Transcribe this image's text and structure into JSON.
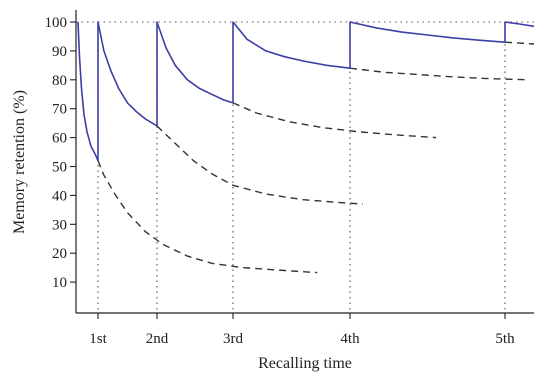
{
  "chart_data": {
    "type": "line",
    "title": "",
    "xlabel": "Recalling time",
    "ylabel": "Memory retention (%)",
    "ylim": [
      0,
      100
    ],
    "ytick_values": [
      10,
      20,
      30,
      40,
      50,
      60,
      70,
      80,
      90,
      100
    ],
    "ytick_labels": [
      "10",
      "20",
      "30",
      "40",
      "50",
      "60",
      "70",
      "80",
      "90",
      "100"
    ],
    "recall_points": [
      {
        "label": "1st",
        "x": 1,
        "level_before_recall": 52
      },
      {
        "label": "2nd",
        "x": 2,
        "level_before_recall": 64
      },
      {
        "label": "3rd",
        "x": 3,
        "level_before_recall": 72
      },
      {
        "label": "4th",
        "x": 4,
        "level_before_recall": 84
      },
      {
        "label": "5th",
        "x": 5,
        "level_before_recall": 93
      }
    ],
    "x_start": 0.1,
    "x_end": 5.15,
    "reference_line": {
      "y": 100,
      "style": "dotted"
    },
    "vertical_markers": {
      "style": "dotted"
    },
    "series": [
      {
        "role": "retention after recall (solid)",
        "color": "#3b3fa6",
        "style": "solid",
        "points": [
          [
            0.1,
            100
          ],
          [
            0.13,
            88
          ],
          [
            0.17,
            77
          ],
          [
            0.22,
            68
          ],
          [
            0.28,
            62
          ],
          [
            0.36,
            57
          ],
          [
            0.45,
            54
          ],
          [
            0.5,
            52
          ],
          [
            0.5,
            100
          ],
          [
            0.6,
            90
          ],
          [
            0.72,
            83
          ],
          [
            0.85,
            77
          ],
          [
            1.0,
            72
          ],
          [
            1.15,
            69
          ],
          [
            1.3,
            66.5
          ],
          [
            1.5,
            64
          ],
          [
            1.5,
            100
          ],
          [
            1.65,
            91
          ],
          [
            1.8,
            85
          ],
          [
            2.0,
            80
          ],
          [
            2.2,
            77
          ],
          [
            2.4,
            75
          ],
          [
            2.6,
            73
          ],
          [
            2.75,
            72
          ],
          [
            2.75,
            100
          ],
          [
            2.9,
            94
          ],
          [
            3.1,
            90
          ],
          [
            3.3,
            88
          ],
          [
            3.5,
            86.5
          ],
          [
            3.75,
            85
          ],
          [
            4.0,
            84
          ],
          [
            4.0,
            100
          ],
          [
            4.3,
            98
          ],
          [
            4.6,
            96.5
          ],
          [
            4.9,
            95.5
          ],
          [
            5.2,
            94.5
          ],
          [
            5.5,
            93.7
          ],
          [
            5.8,
            93
          ],
          [
            5.8,
            100
          ],
          [
            5.95,
            99.3
          ],
          [
            6.1,
            98.5
          ]
        ]
      },
      {
        "role": "forgetting curve without 1st recall (dashed)",
        "color": "#333333",
        "style": "dashed",
        "points": [
          [
            0.5,
            52
          ],
          [
            0.6,
            47
          ],
          [
            0.8,
            40
          ],
          [
            1.0,
            34
          ],
          [
            1.3,
            27.5
          ],
          [
            1.6,
            23
          ],
          [
            2.0,
            19
          ],
          [
            2.4,
            16.5
          ],
          [
            2.85,
            15
          ],
          [
            3.3,
            14
          ],
          [
            3.65,
            13.3
          ]
        ]
      },
      {
        "role": "forgetting curve without 2nd recall (dashed)",
        "color": "#333333",
        "style": "dashed",
        "points": [
          [
            1.5,
            64
          ],
          [
            1.8,
            58
          ],
          [
            2.1,
            52
          ],
          [
            2.4,
            47.5
          ],
          [
            2.75,
            43.5
          ],
          [
            3.1,
            40.5
          ],
          [
            3.5,
            38.5
          ],
          [
            3.9,
            37.5
          ],
          [
            4.15,
            37
          ]
        ]
      },
      {
        "role": "forgetting curve without 3rd recall (dashed)",
        "color": "#333333",
        "style": "dashed",
        "points": [
          [
            2.75,
            72
          ],
          [
            3.0,
            68.5
          ],
          [
            3.35,
            65.5
          ],
          [
            3.7,
            63.5
          ],
          [
            4.1,
            62
          ],
          [
            4.5,
            61
          ],
          [
            5.0,
            60
          ]
        ]
      },
      {
        "role": "forgetting curve without 4th recall (dashed)",
        "color": "#333333",
        "style": "dashed",
        "points": [
          [
            4.0,
            84
          ],
          [
            4.4,
            82.6
          ],
          [
            4.8,
            81.8
          ],
          [
            5.2,
            81
          ],
          [
            5.6,
            80.4
          ],
          [
            6.05,
            80
          ]
        ]
      },
      {
        "role": "forgetting curve without 5th recall (dashed)",
        "color": "#333333",
        "style": "dashed",
        "points": [
          [
            5.8,
            93
          ],
          [
            5.95,
            92.7
          ],
          [
            6.1,
            92.4
          ]
        ]
      }
    ],
    "grid": false,
    "legend": "none"
  }
}
